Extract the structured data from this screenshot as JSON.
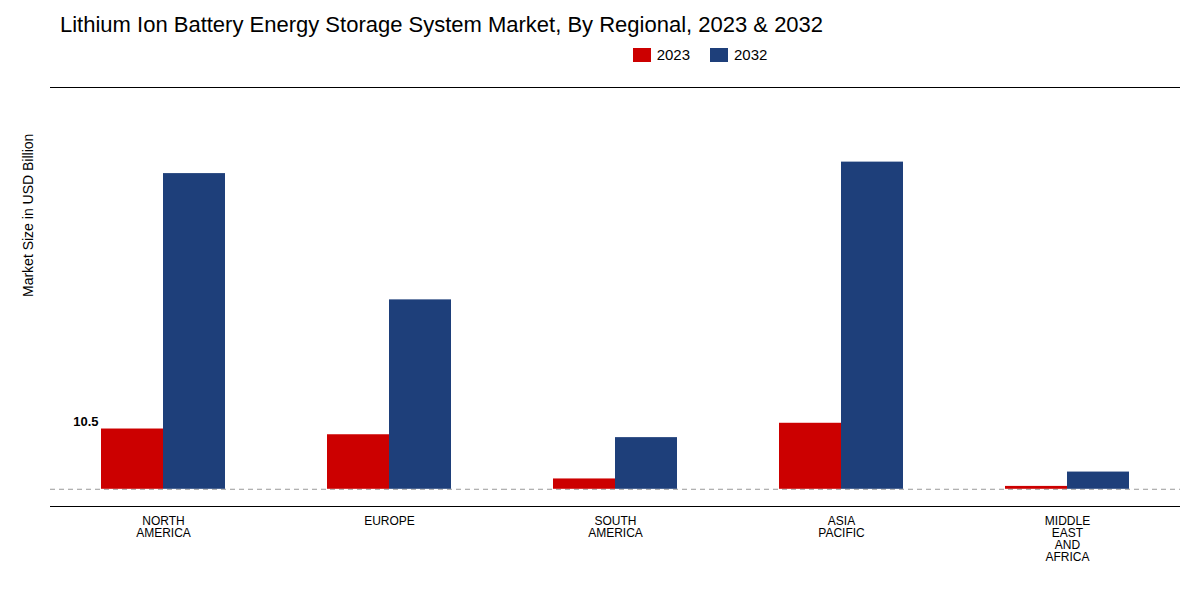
{
  "chart_data": {
    "type": "bar",
    "title": "Lithium Ion Battery Energy Storage System Market, By Regional, 2023 & 2032",
    "ylabel": "Market Size in USD Billion",
    "categories": [
      "NORTH\nAMERICA",
      "EUROPE",
      "SOUTH\nAMERICA",
      "ASIA\nPACIFIC",
      "MIDDLE\nEAST\nAND\nAFRICA"
    ],
    "series": [
      {
        "name": "2023",
        "color": "#cc0000",
        "values": [
          10.5,
          9.5,
          1.8,
          11.5,
          0.5
        ]
      },
      {
        "name": "2032",
        "color": "#1e3f7a",
        "values": [
          55.0,
          33.0,
          9.0,
          57.0,
          3.0
        ]
      }
    ],
    "ylim": [
      -3,
      70
    ],
    "yticks": [],
    "tick_labels": "x",
    "grid": false,
    "legend": "top",
    "annotations": [
      {
        "text": "10.5",
        "category": "NORTH\nAMERICA",
        "series": "2023",
        "y": 10.5
      }
    ]
  }
}
